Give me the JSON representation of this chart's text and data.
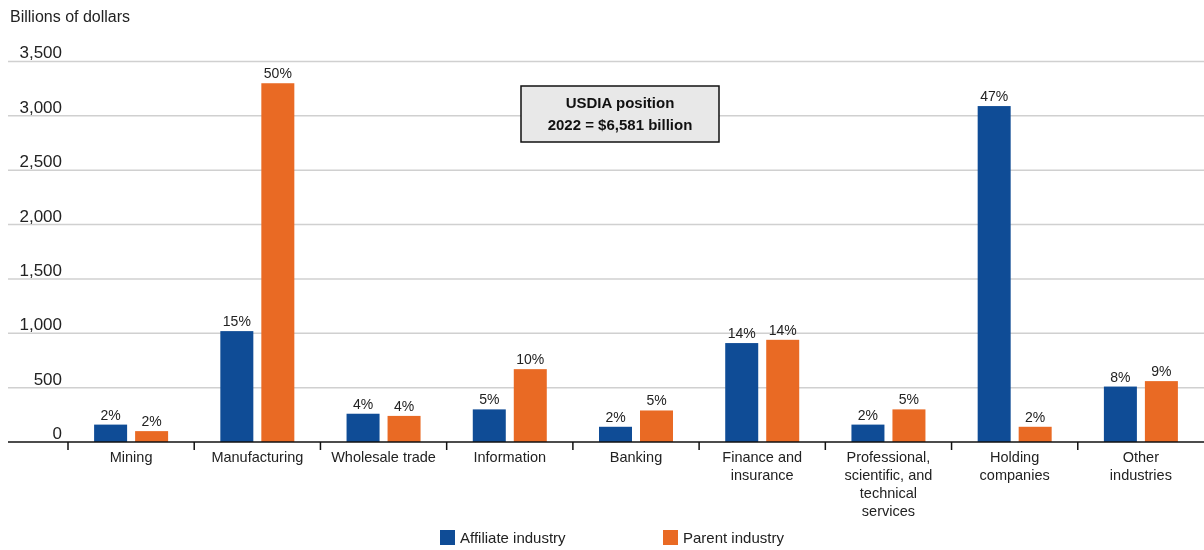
{
  "chart_data": {
    "type": "bar",
    "ylabel": "Billions of dollars",
    "categories": [
      "Mining",
      "Manufacturing",
      "Wholesale trade",
      "Information",
      "Banking",
      "Finance and insurance",
      "Professional, scientific, and technical services",
      "Holding companies",
      "Other industries"
    ],
    "series": [
      {
        "name": "Affiliate industry",
        "color": "#0f4c96",
        "values": [
          160,
          1020,
          260,
          300,
          140,
          910,
          160,
          3090,
          510
        ]
      },
      {
        "name": "Parent industry",
        "color": "#e96a24",
        "values": [
          100,
          3300,
          240,
          670,
          290,
          940,
          300,
          140,
          560
        ]
      }
    ],
    "ylim": [
      0,
      3500
    ],
    "yticks": [
      0,
      {
        "value": 500,
        "label": "500"
      },
      {
        "value": 1000,
        "label": "1,000"
      },
      {
        "value": 1500,
        "label": "1,500"
      },
      {
        "value": 2000,
        "label": "2,000"
      },
      {
        "value": 2500,
        "label": "2,500"
      },
      {
        "value": 3000,
        "label": "3,000"
      },
      {
        "value": 3500,
        "label": "3,500"
      }
    ],
    "grid": "y",
    "legend": "bottom",
    "annotations": [
      "USDIA position\n2022 = $6,581 billion",
      {
        "text": "2%",
        "x": "Mining",
        "y": 160
      },
      {
        "text": "2%",
        "x": "Mining",
        "y": 100
      },
      {
        "text": "15%",
        "x": "Manufacturing",
        "y": 1020
      },
      {
        "text": "50%",
        "x": "Manufacturing",
        "y": 3300
      },
      {
        "text": "4%",
        "x": "Wholesale trade",
        "y": 260
      },
      {
        "text": "4%",
        "x": "Wholesale trade",
        "y": 240
      },
      {
        "text": "5%",
        "x": "Information",
        "y": 300
      },
      {
        "text": "10%",
        "x": "Information",
        "y": 670
      },
      {
        "text": "2%",
        "x": "Banking",
        "y": 140
      },
      {
        "text": "5%",
        "x": "Banking",
        "y": 290
      },
      {
        "text": "14%",
        "x": "Finance and insurance",
        "y": 910
      },
      {
        "text": "14%",
        "x": "Finance and insurance",
        "y": 940
      },
      {
        "text": "2%",
        "x": "Professional, scientific, and technical services",
        "y": 160
      },
      {
        "text": "5%",
        "x": "Professional, scientific, and technical services",
        "y": 300
      },
      {
        "text": "47%",
        "x": "Holding companies",
        "y": 3090
      },
      {
        "text": "2%",
        "x": "Holding companies",
        "y": 140
      },
      {
        "text": "8%",
        "x": "Other industries",
        "y": 510
      },
      {
        "text": "9%",
        "x": "Other industries",
        "y": 560
      }
    ]
  }
}
